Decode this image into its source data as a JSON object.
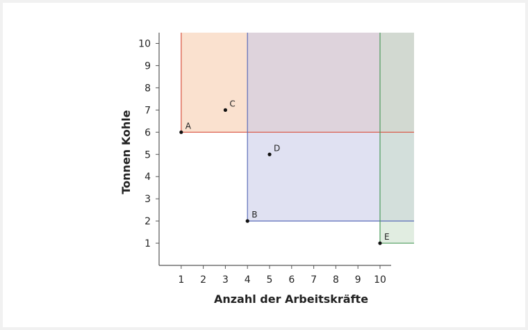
{
  "chart_data": {
    "type": "scatter",
    "title": "",
    "xlabel": "Anzahl der Arbeitskräfte",
    "ylabel": "Tonnen Kohle",
    "xlim": [
      0,
      10.7
    ],
    "ylim": [
      0,
      10.5
    ],
    "xticks": [
      "1",
      "2",
      "3",
      "4",
      "5",
      "6",
      "7",
      "8",
      "9",
      "10"
    ],
    "yticks": [
      "1",
      "2",
      "3",
      "4",
      "5",
      "6",
      "7",
      "8",
      "9",
      "10"
    ],
    "grid": false,
    "points": [
      {
        "label": "A",
        "x": 1,
        "y": 6
      },
      {
        "label": "B",
        "x": 4,
        "y": 2
      },
      {
        "label": "C",
        "x": 3,
        "y": 7
      },
      {
        "label": "D",
        "x": 5,
        "y": 5
      },
      {
        "label": "E",
        "x": 10,
        "y": 1
      }
    ],
    "regions": [
      {
        "corner": "A",
        "x": 1,
        "y": 6,
        "line_color": "#d94f3d",
        "fill_color": "#f5c9a8"
      },
      {
        "corner": "B",
        "x": 4,
        "y": 2,
        "line_color": "#5a6cb8",
        "fill_color": "#c7c9e8"
      },
      {
        "corner": "E",
        "x": 10,
        "y": 1,
        "line_color": "#4a9a5a",
        "fill_color": "#c9dfc9"
      }
    ]
  }
}
